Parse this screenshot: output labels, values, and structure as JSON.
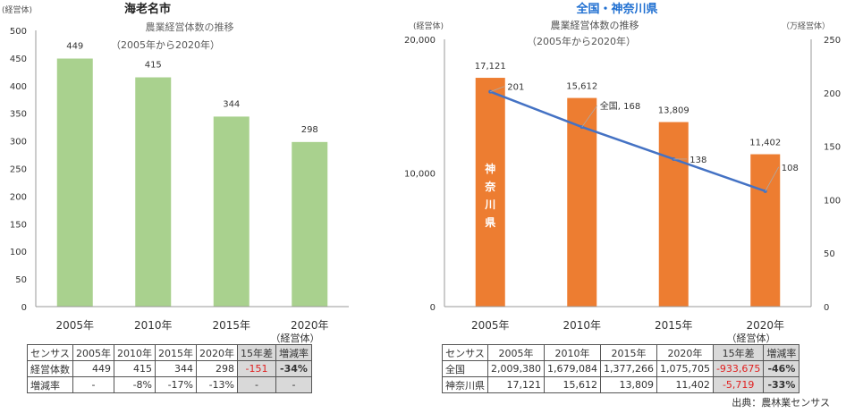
{
  "chart_data": [
    {
      "type": "bar",
      "title": "海老名市",
      "subtitle": "農業経営体数の推移",
      "period": "（2005年から2020年）",
      "ylabel": "(経営体)",
      "categories": [
        "2005年",
        "2010年",
        "2015年",
        "2020年"
      ],
      "x_unit": "（経営体）",
      "values": [
        449,
        415,
        344,
        298
      ],
      "value_labels": [
        "449",
        "415",
        "344",
        "298"
      ],
      "yticks": [
        "0",
        "50",
        "100",
        "150",
        "200",
        "250",
        "300",
        "350",
        "400",
        "450",
        "500"
      ],
      "ylim": [
        0,
        500
      ],
      "bar_color": "#a9d18e"
    },
    {
      "type": "bar+line",
      "title": "全国・神奈川県",
      "subtitle": "農業経営体数の推移",
      "period": "（2005年から2020年）",
      "ylabel_left": "(経営体)",
      "ylabel_right": "（万経営体）",
      "categories": [
        "2005年",
        "2010年",
        "2015年",
        "2020年"
      ],
      "x_unit": "（経営体）",
      "bar_series_label": "神奈川県",
      "bar_values": [
        17121,
        15612,
        13809,
        11402
      ],
      "bar_labels": [
        "17,121",
        "15,612",
        "13,809",
        "11,402"
      ],
      "line_values": [
        201,
        168,
        138,
        108
      ],
      "line_labels": [
        "201",
        "全国, 168",
        "138",
        "108"
      ],
      "yticks_left": [
        "0",
        "10,000",
        "20,000"
      ],
      "ylim_left": [
        0,
        20000
      ],
      "yticks_right": [
        "0",
        "50",
        "100",
        "150",
        "200",
        "250"
      ],
      "ylim_right": [
        0,
        250
      ],
      "bar_color": "#ed7d31",
      "line_color": "#4472c4"
    }
  ],
  "table_left": {
    "header": [
      "センサス",
      "2005年",
      "2010年",
      "2015年",
      "2020年",
      "15年差",
      "増減率"
    ],
    "rows": [
      [
        "経営体数",
        "449",
        "415",
        "344",
        "298",
        "-151",
        "-34%"
      ],
      [
        "増減率",
        "-",
        "-8%",
        "-17%",
        "-13%",
        "-",
        "-"
      ]
    ]
  },
  "table_right": {
    "header": [
      "センサス",
      "2005年",
      "2010年",
      "2015年",
      "2020年",
      "15年差",
      "増減率"
    ],
    "rows": [
      [
        "全国",
        "2,009,380",
        "1,679,084",
        "1,377,266",
        "1,075,705",
        "-933,675",
        "-46%"
      ],
      [
        "神奈川県",
        "17,121",
        "15,612",
        "13,809",
        "11,402",
        "-5,719",
        "-33%"
      ]
    ]
  },
  "source": "出典：農林業センサス"
}
